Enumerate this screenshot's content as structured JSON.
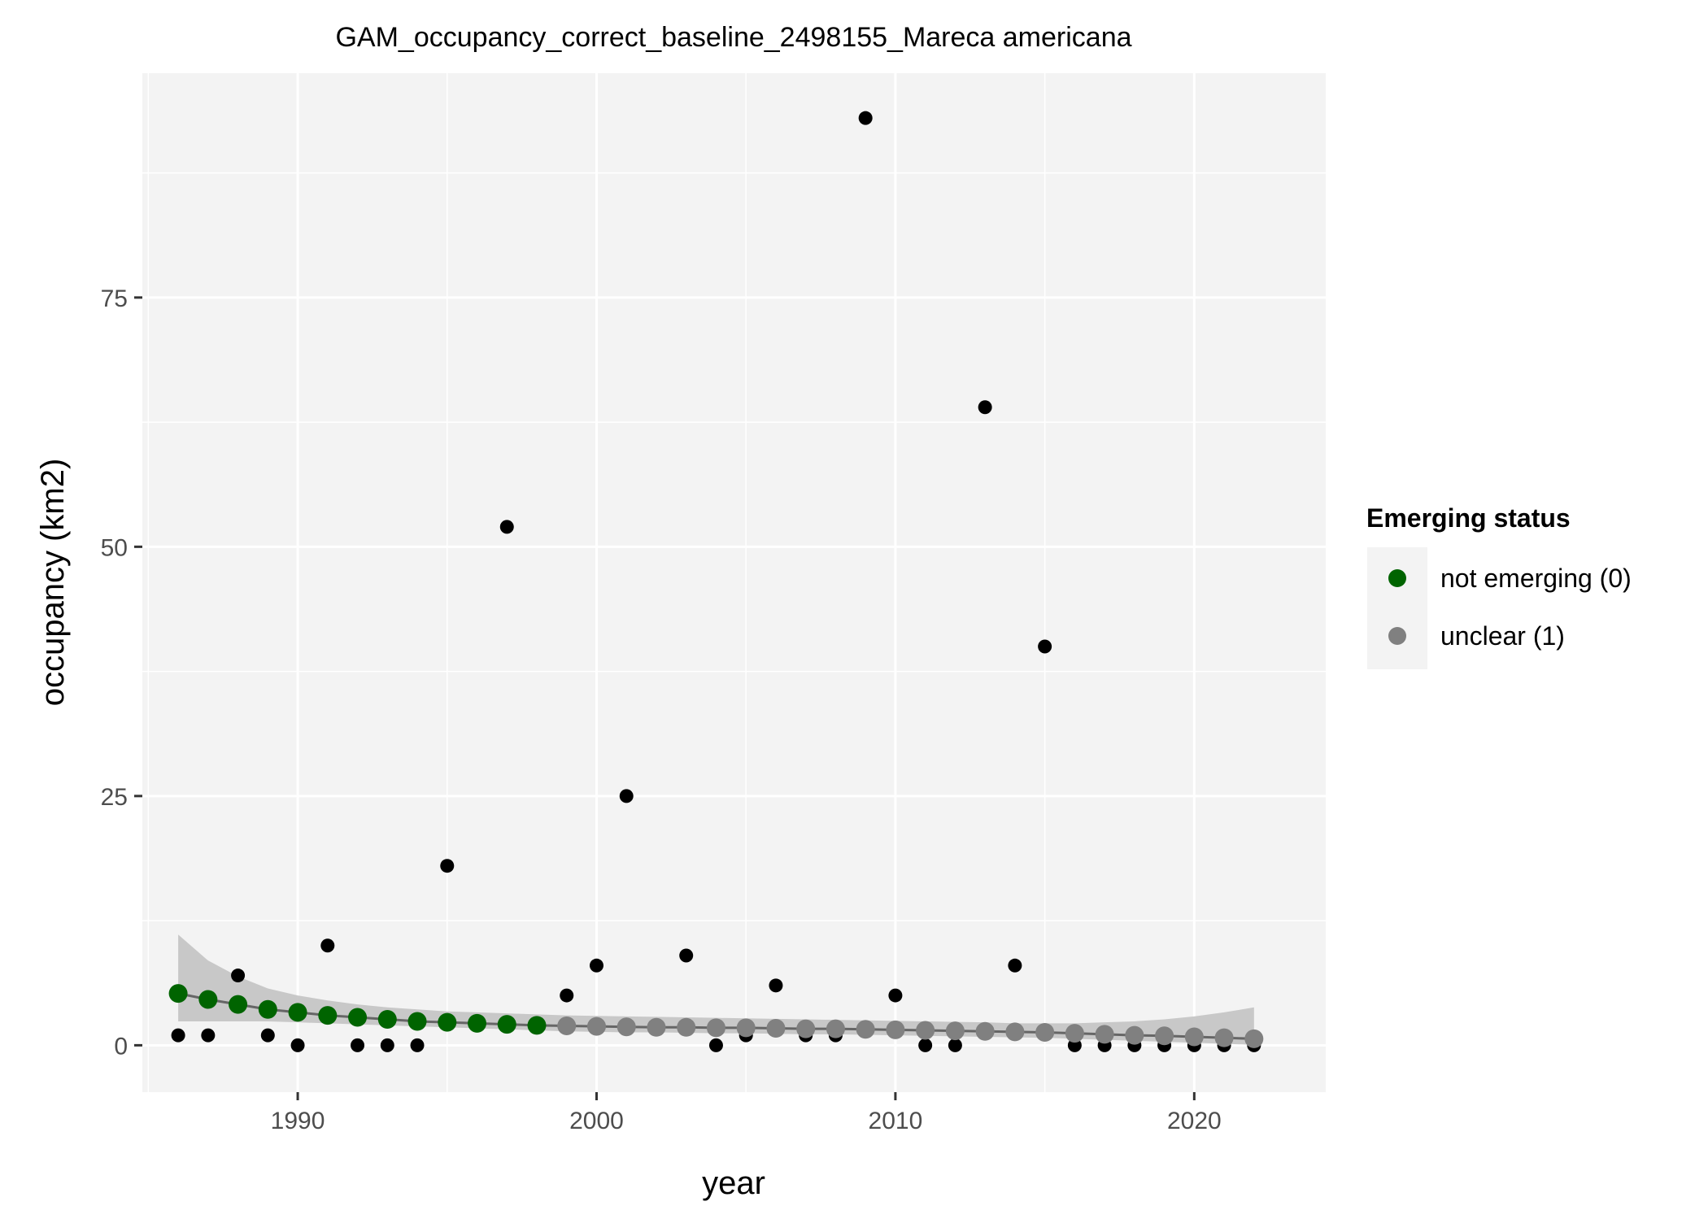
{
  "chart_data": {
    "type": "scatter",
    "title": "GAM_occupancy_correct_baseline_2498155_Mareca americana",
    "xlabel": "year",
    "ylabel": "occupancy (km2)",
    "xlim": [
      1984.8,
      2024.4
    ],
    "ylim": [
      -4.7,
      97.5
    ],
    "x_ticks": [
      1990,
      2000,
      2010,
      2020
    ],
    "y_ticks": [
      0,
      25,
      50,
      75
    ],
    "grid": true,
    "legend": {
      "title": "Emerging status",
      "position": "right",
      "entries": [
        {
          "label": "not emerging (0)",
          "color": "#006400"
        },
        {
          "label": "unclear (1)",
          "color": "#808080"
        }
      ]
    },
    "observed": {
      "color": "#000000",
      "points": [
        {
          "x": 1986,
          "y": 1
        },
        {
          "x": 1987,
          "y": 1
        },
        {
          "x": 1988,
          "y": 7
        },
        {
          "x": 1989,
          "y": 1
        },
        {
          "x": 1990,
          "y": 0
        },
        {
          "x": 1991,
          "y": 10
        },
        {
          "x": 1992,
          "y": 0
        },
        {
          "x": 1993,
          "y": 0
        },
        {
          "x": 1994,
          "y": 0
        },
        {
          "x": 1995,
          "y": 18
        },
        {
          "x": 1997,
          "y": 52
        },
        {
          "x": 1999,
          "y": 5
        },
        {
          "x": 2000,
          "y": 8
        },
        {
          "x": 2001,
          "y": 25
        },
        {
          "x": 2003,
          "y": 9
        },
        {
          "x": 2004,
          "y": 0
        },
        {
          "x": 2005,
          "y": 1
        },
        {
          "x": 2006,
          "y": 6
        },
        {
          "x": 2007,
          "y": 1
        },
        {
          "x": 2008,
          "y": 1
        },
        {
          "x": 2009,
          "y": 93
        },
        {
          "x": 2010,
          "y": 5
        },
        {
          "x": 2011,
          "y": 0
        },
        {
          "x": 2012,
          "y": 0
        },
        {
          "x": 2013,
          "y": 64
        },
        {
          "x": 2014,
          "y": 8
        },
        {
          "x": 2015,
          "y": 40
        },
        {
          "x": 2016,
          "y": 0
        },
        {
          "x": 2017,
          "y": 0
        },
        {
          "x": 2018,
          "y": 0
        },
        {
          "x": 2019,
          "y": 0
        },
        {
          "x": 2020,
          "y": 0
        },
        {
          "x": 2021,
          "y": 0
        },
        {
          "x": 2022,
          "y": 0
        }
      ]
    },
    "fitted": {
      "line_color": "#666666",
      "ribbon_color": "#bfbfbf",
      "points": [
        {
          "x": 1986,
          "y": 5.2,
          "lower": 2.4,
          "upper": 11.1,
          "status": 0
        },
        {
          "x": 1987,
          "y": 4.6,
          "lower": 2.4,
          "upper": 8.5,
          "status": 0
        },
        {
          "x": 1988,
          "y": 4.1,
          "lower": 2.4,
          "upper": 6.9,
          "status": 0
        },
        {
          "x": 1989,
          "y": 3.6,
          "lower": 2.4,
          "upper": 5.7,
          "status": 0
        },
        {
          "x": 1990,
          "y": 3.3,
          "lower": 2.3,
          "upper": 5.0,
          "status": 0
        },
        {
          "x": 1991,
          "y": 3.0,
          "lower": 2.2,
          "upper": 4.5,
          "status": 0
        },
        {
          "x": 1992,
          "y": 2.8,
          "lower": 2.1,
          "upper": 4.1,
          "status": 0
        },
        {
          "x": 1993,
          "y": 2.6,
          "lower": 2.0,
          "upper": 3.8,
          "status": 0
        },
        {
          "x": 1994,
          "y": 2.4,
          "lower": 1.9,
          "upper": 3.6,
          "status": 0
        },
        {
          "x": 1995,
          "y": 2.3,
          "lower": 1.8,
          "upper": 3.4,
          "status": 0
        },
        {
          "x": 1996,
          "y": 2.2,
          "lower": 1.7,
          "upper": 3.3,
          "status": 0
        },
        {
          "x": 1997,
          "y": 2.1,
          "lower": 1.6,
          "upper": 3.2,
          "status": 0
        },
        {
          "x": 1998,
          "y": 2.0,
          "lower": 1.5,
          "upper": 3.1,
          "status": 0
        },
        {
          "x": 1999,
          "y": 1.95,
          "lower": 1.4,
          "upper": 3.0,
          "status": 1
        },
        {
          "x": 2000,
          "y": 1.9,
          "lower": 1.35,
          "upper": 2.95,
          "status": 1
        },
        {
          "x": 2001,
          "y": 1.85,
          "lower": 1.3,
          "upper": 2.9,
          "status": 1
        },
        {
          "x": 2002,
          "y": 1.8,
          "lower": 1.3,
          "upper": 2.85,
          "status": 1
        },
        {
          "x": 2003,
          "y": 1.8,
          "lower": 1.25,
          "upper": 2.8,
          "status": 1
        },
        {
          "x": 2004,
          "y": 1.75,
          "lower": 1.2,
          "upper": 2.75,
          "status": 1
        },
        {
          "x": 2005,
          "y": 1.75,
          "lower": 1.2,
          "upper": 2.7,
          "status": 1
        },
        {
          "x": 2006,
          "y": 1.7,
          "lower": 1.15,
          "upper": 2.65,
          "status": 1
        },
        {
          "x": 2007,
          "y": 1.65,
          "lower": 1.1,
          "upper": 2.6,
          "status": 1
        },
        {
          "x": 2008,
          "y": 1.65,
          "lower": 1.1,
          "upper": 2.55,
          "status": 1
        },
        {
          "x": 2009,
          "y": 1.6,
          "lower": 1.05,
          "upper": 2.5,
          "status": 1
        },
        {
          "x": 2010,
          "y": 1.55,
          "lower": 1.0,
          "upper": 2.45,
          "status": 1
        },
        {
          "x": 2011,
          "y": 1.5,
          "lower": 0.95,
          "upper": 2.4,
          "status": 1
        },
        {
          "x": 2012,
          "y": 1.45,
          "lower": 0.9,
          "upper": 2.35,
          "status": 1
        },
        {
          "x": 2013,
          "y": 1.4,
          "lower": 0.85,
          "upper": 2.3,
          "status": 1
        },
        {
          "x": 2014,
          "y": 1.35,
          "lower": 0.8,
          "upper": 2.2,
          "status": 1
        },
        {
          "x": 2015,
          "y": 1.3,
          "lower": 0.75,
          "upper": 2.2,
          "status": 1
        },
        {
          "x": 2016,
          "y": 1.2,
          "lower": 0.65,
          "upper": 2.2,
          "status": 1
        },
        {
          "x": 2017,
          "y": 1.1,
          "lower": 0.55,
          "upper": 2.3,
          "status": 1
        },
        {
          "x": 2018,
          "y": 1.0,
          "lower": 0.45,
          "upper": 2.4,
          "status": 1
        },
        {
          "x": 2019,
          "y": 0.95,
          "lower": 0.35,
          "upper": 2.6,
          "status": 1
        },
        {
          "x": 2020,
          "y": 0.85,
          "lower": 0.25,
          "upper": 2.9,
          "status": 1
        },
        {
          "x": 2021,
          "y": 0.75,
          "lower": 0.15,
          "upper": 3.3,
          "status": 1
        },
        {
          "x": 2022,
          "y": 0.65,
          "lower": 0.05,
          "upper": 3.8,
          "status": 1
        }
      ]
    }
  }
}
